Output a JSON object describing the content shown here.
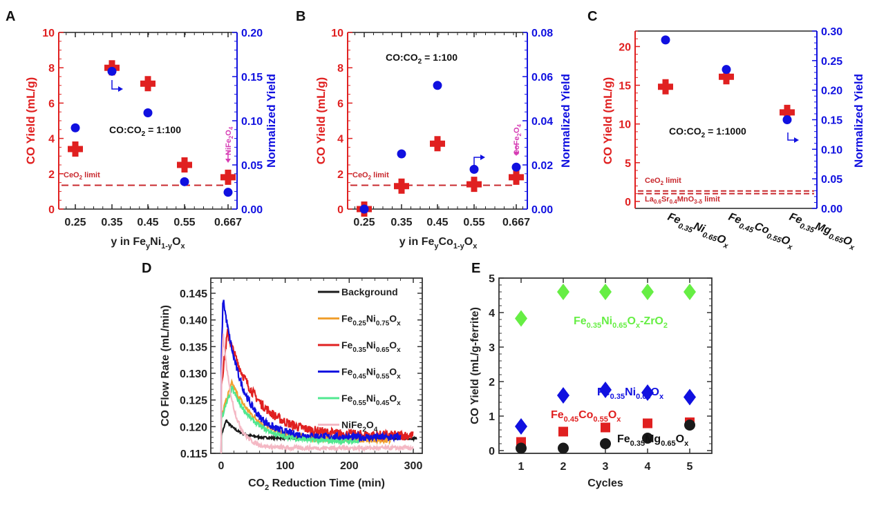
{
  "colors": {
    "red": "#e02020",
    "darkred": "#c8282d",
    "blue": "#1010e0",
    "magenta": "#d63cb4",
    "black": "#1a1a1a",
    "orange": "#f0a030",
    "green_line": "#50e890",
    "pink": "#f4b8c4",
    "green_marker": "#66ee44"
  },
  "chart_data": [
    {
      "panel": "A",
      "type": "scatter",
      "xlabel": "y in Fe_yNi_{1-y}O_x",
      "ylabel": "CO Yield (mL/g)",
      "y2label": "Normalized Yield",
      "categories": [
        "0.25",
        "0.35",
        "0.45",
        "0.55",
        "0.667"
      ],
      "ylim": [
        0,
        10
      ],
      "yticks": [
        0,
        2,
        4,
        6,
        8,
        10
      ],
      "y2lim": [
        0,
        0.2
      ],
      "y2ticks": [
        "0.00",
        "0.05",
        "0.10",
        "0.15",
        "0.20"
      ],
      "series": [
        {
          "name": "CO Yield",
          "axis": "left",
          "marker": "cross",
          "values": [
            3.4,
            8.0,
            7.1,
            2.5,
            1.8
          ]
        },
        {
          "name": "Normalized Yield",
          "axis": "right",
          "marker": "circle",
          "values": [
            0.092,
            0.156,
            0.109,
            0.031,
            0.019
          ]
        }
      ],
      "hlines": [
        {
          "label": "CeO2 limit",
          "value": 1.35
        }
      ],
      "annotations": [
        "CO:CO2 = 1:100",
        "NiFe2O4"
      ]
    },
    {
      "panel": "B",
      "type": "scatter",
      "xlabel": "y in Fe_yCo_{1-y}O_x",
      "ylabel": "CO Yield (mL/g)",
      "y2label": "Normalized Yield",
      "categories": [
        "0.25",
        "0.35",
        "0.45",
        "0.55",
        "0.667"
      ],
      "ylim": [
        0,
        10
      ],
      "yticks": [
        0,
        2,
        4,
        6,
        8,
        10
      ],
      "y2lim": [
        0,
        0.08
      ],
      "y2ticks": [
        "0.00",
        "0.02",
        "0.04",
        "0.06",
        "0.08"
      ],
      "series": [
        {
          "name": "CO Yield",
          "axis": "left",
          "marker": "cross",
          "values": [
            0.0,
            1.3,
            3.7,
            1.4,
            1.8
          ]
        },
        {
          "name": "Normalized Yield",
          "axis": "right",
          "marker": "circle",
          "values": [
            0.0,
            0.025,
            0.056,
            0.018,
            0.019
          ]
        }
      ],
      "hlines": [
        {
          "label": "CeO2 limit",
          "value": 1.35
        }
      ],
      "annotations": [
        "CO:CO2 = 1:100",
        "CoFe2O4"
      ]
    },
    {
      "panel": "C",
      "type": "scatter",
      "xlabel": "",
      "ylabel": "CO Yield (mL/g)",
      "y2label": "Normalized Yield",
      "categories": [
        "Fe0.35Ni0.65Ox",
        "Fe0.45Co0.55Ox",
        "Fe0.35Mg0.65Ox"
      ],
      "ylim": [
        -0.9,
        22
      ],
      "yticks": [
        0,
        5,
        10,
        15,
        20
      ],
      "y2lim": [
        0,
        0.3
      ],
      "y2ticks": [
        "0.00",
        "0.05",
        "0.10",
        "0.15",
        "0.20",
        "0.25",
        "0.30"
      ],
      "series": [
        {
          "name": "CO Yield",
          "axis": "left",
          "marker": "cross",
          "values": [
            14.8,
            16.1,
            11.5
          ]
        },
        {
          "name": "Normalized Yield",
          "axis": "right",
          "marker": "circle",
          "values": [
            0.285,
            0.235,
            0.15
          ]
        }
      ],
      "hlines": [
        {
          "label": "CeO2 limit",
          "value": 1.35
        },
        {
          "label": "La0.6Sr0.4MnO3-δ limit",
          "value": 1.0
        }
      ],
      "annotations": [
        "CO:CO2 = 1:1000"
      ]
    },
    {
      "panel": "D",
      "type": "line",
      "xlabel": "CO2 Reduction Time (min)",
      "ylabel": "CO Flow Rate (mL/min)",
      "xlim": [
        -5,
        305
      ],
      "xticks": [
        0,
        100,
        200,
        300
      ],
      "ylim": [
        0.115,
        0.148
      ],
      "yticks": [
        "0.115",
        "0.120",
        "0.125",
        "0.130",
        "0.135",
        "0.140",
        "0.145"
      ],
      "legend_position": "top-right",
      "series": [
        {
          "name": "Background",
          "color_key": "black",
          "end": 305,
          "baseline": 0.1178,
          "peak": 0.1212,
          "peak_t": 8,
          "tau": 20,
          "noise": 0.0002
        },
        {
          "name": "Fe0.25Ni0.75Ox",
          "color_key": "orange",
          "end": 265,
          "baseline": 0.1175,
          "peak": 0.1282,
          "peak_t": 17,
          "tau": 38,
          "noise": 0.0005
        },
        {
          "name": "Fe0.35Ni0.65Ox",
          "color_key": "red",
          "end": 300,
          "baseline": 0.1183,
          "peak": 0.1377,
          "peak_t": 10,
          "tau": 45,
          "noise": 0.0009
        },
        {
          "name": "Fe0.45Ni0.55Ox",
          "color_key": "blue",
          "end": 280,
          "baseline": 0.118,
          "peak": 0.1442,
          "peak_t": 3,
          "tau": 30,
          "noise": 0.0007
        },
        {
          "name": "Fe0.55Ni0.45Ox",
          "color_key": "green_line",
          "end": 215,
          "baseline": 0.1172,
          "peak": 0.1273,
          "peak_t": 17,
          "tau": 35,
          "noise": 0.0004
        },
        {
          "name": "NiFe2O4",
          "color_key": "pink",
          "end": 300,
          "baseline": 0.116,
          "peak": 0.1375,
          "peak_t": 3,
          "tau": 16,
          "noise": 0.0004
        }
      ]
    },
    {
      "panel": "E",
      "type": "scatter",
      "xlabel": "Cycles",
      "ylabel": "CO Yield (mL/g-ferrite)",
      "x": [
        1,
        2,
        3,
        4,
        5
      ],
      "xlim": [
        0.45,
        5.45
      ],
      "ylim": [
        -0.05,
        5
      ],
      "yticks": [
        0,
        1,
        2,
        3,
        4,
        5
      ],
      "series": [
        {
          "name": "Fe0.35Ni0.65Ox-ZrO2",
          "marker": "diamond",
          "color_key": "green_marker",
          "values": [
            3.83,
            4.6,
            4.6,
            4.6,
            4.6
          ]
        },
        {
          "name": "Fe0.35Ni0.65Ox",
          "marker": "diamond",
          "color_key": "blue",
          "values": [
            0.7,
            1.6,
            1.76,
            1.68,
            1.55
          ]
        },
        {
          "name": "Fe0.45Co0.55Ox",
          "marker": "square",
          "color_key": "red",
          "values": [
            0.25,
            0.55,
            0.67,
            0.79,
            0.82
          ]
        },
        {
          "name": "Fe0.35Mg0.65Ox",
          "marker": "circle",
          "color_key": "black",
          "values": [
            0.07,
            0.07,
            0.2,
            0.36,
            0.74
          ]
        }
      ]
    }
  ],
  "labels": {
    "panel_a": "A",
    "panel_b": "B",
    "panel_c": "C",
    "panel_d": "D",
    "panel_e": "E",
    "co_yield": "CO Yield (mL/g)",
    "normalized_yield": "Normalized Yield",
    "ratio_100": "CO:CO",
    "ratio_100_rest": " = 1:100",
    "ratio_1000_rest": " = 1:1000",
    "ceo2": "CeO",
    "limit": " limit",
    "lsm_la": "La",
    "lsm_sr": "Sr",
    "lsm_mn": "MnO",
    "lsm_delta": "3-δ",
    "sub2": "2",
    "sub4": "4",
    "sub06": "0.6",
    "sub04": "0.4",
    "nife": "NiFe",
    "cofe": "CoFe",
    "o": "O",
    "y_in": "y in Fe",
    "ni": "Ni",
    "co": "Co",
    "mg": "Mg",
    "fe": "Fe",
    "sub_y": "y",
    "sub_1my": "1-y",
    "sub_x": "x",
    "sub_035": "0.35",
    "sub_045": "0.45",
    "sub_065": "0.65",
    "sub_055": "0.55",
    "sub_025": "0.25",
    "sub_075": "0.75",
    "zro": "-ZrO",
    "d_ylabel": "CO Flow Rate (mL/min)",
    "d_xlabel_co": "CO",
    "d_xlabel_rest": " Reduction Time (min)",
    "e_ylabel": "CO Yield (mL/g-ferrite)",
    "e_xlabel": "Cycles",
    "legend_background": "Background"
  }
}
